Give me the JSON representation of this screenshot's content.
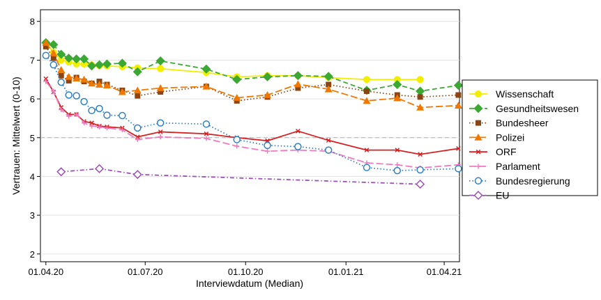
{
  "chart_data": {
    "type": "line",
    "xlabel": "Interviewdatum (Median)",
    "ylabel": "Vertrauen: Mittelwert (0-10)",
    "ylim": [
      1.8,
      8.3
    ],
    "xlim": [
      "2020-03-27",
      "2021-04-15"
    ],
    "yticks": [
      2,
      3,
      4,
      5,
      6,
      7,
      8
    ],
    "xticks": [
      {
        "date": "2020-04-01",
        "label": "01.04.20"
      },
      {
        "date": "2020-07-01",
        "label": "01.07.20"
      },
      {
        "date": "2020-10-01",
        "label": "01.10.20"
      },
      {
        "date": "2021-01-01",
        "label": "01.01.21"
      },
      {
        "date": "2021-04-01",
        "label": "01.04.21"
      }
    ],
    "reference_line": 5,
    "grid": true,
    "legend_position": "right",
    "series": [
      {
        "name": "Wissenschaft",
        "color": "#f2ee00",
        "marker": "circle-filled",
        "dash": "solid",
        "points": [
          [
            "2020-04-01",
            7.45
          ],
          [
            "2020-04-08",
            7.2
          ],
          [
            "2020-04-15",
            7.0
          ],
          [
            "2020-04-22",
            6.95
          ],
          [
            "2020-04-29",
            6.9
          ],
          [
            "2020-05-06",
            6.9
          ],
          [
            "2020-05-13",
            6.88
          ],
          [
            "2020-05-20",
            6.86
          ],
          [
            "2020-05-27",
            6.85
          ],
          [
            "2020-06-10",
            6.83
          ],
          [
            "2020-06-24",
            6.8
          ],
          [
            "2020-07-15",
            6.78
          ],
          [
            "2020-08-26",
            6.68
          ],
          [
            "2020-09-23",
            6.57
          ],
          [
            "2020-10-21",
            6.6
          ],
          [
            "2020-11-18",
            6.6
          ],
          [
            "2020-12-16",
            6.55
          ],
          [
            "2021-01-20",
            6.5
          ],
          [
            "2021-02-17",
            6.5
          ],
          [
            "2021-03-10",
            6.5
          ]
        ]
      },
      {
        "name": "Gesundheitswesen",
        "color": "#3aa832",
        "marker": "diamond-filled",
        "dash": "dash",
        "points": [
          [
            "2020-04-01",
            7.45
          ],
          [
            "2020-04-08",
            7.4
          ],
          [
            "2020-04-15",
            7.15
          ],
          [
            "2020-04-22",
            7.05
          ],
          [
            "2020-04-29",
            7.03
          ],
          [
            "2020-05-06",
            7.03
          ],
          [
            "2020-05-13",
            6.85
          ],
          [
            "2020-05-20",
            6.88
          ],
          [
            "2020-05-27",
            6.9
          ],
          [
            "2020-06-10",
            6.92
          ],
          [
            "2020-06-24",
            6.7
          ],
          [
            "2020-07-15",
            6.98
          ],
          [
            "2020-08-26",
            6.77
          ],
          [
            "2020-09-23",
            6.5
          ],
          [
            "2020-10-21",
            6.57
          ],
          [
            "2020-11-18",
            6.6
          ],
          [
            "2020-12-16",
            6.58
          ],
          [
            "2021-01-20",
            6.22
          ],
          [
            "2021-02-17",
            6.37
          ],
          [
            "2021-03-10",
            6.2
          ],
          [
            "2021-04-14",
            6.35
          ]
        ]
      },
      {
        "name": "Bundesheer",
        "color": "#8b4513",
        "marker": "square-filled",
        "dash": "dot",
        "points": [
          [
            "2020-04-01",
            7.35
          ],
          [
            "2020-04-08",
            7.05
          ],
          [
            "2020-04-15",
            6.6
          ],
          [
            "2020-04-22",
            6.47
          ],
          [
            "2020-04-29",
            6.55
          ],
          [
            "2020-05-06",
            6.45
          ],
          [
            "2020-05-13",
            6.4
          ],
          [
            "2020-05-20",
            6.45
          ],
          [
            "2020-05-27",
            6.37
          ],
          [
            "2020-06-10",
            6.22
          ],
          [
            "2020-06-24",
            6.08
          ],
          [
            "2020-07-15",
            6.18
          ],
          [
            "2020-08-26",
            6.32
          ],
          [
            "2020-09-23",
            5.95
          ],
          [
            "2020-10-21",
            6.05
          ],
          [
            "2020-11-18",
            6.28
          ],
          [
            "2020-12-16",
            6.37
          ],
          [
            "2021-01-20",
            6.2
          ],
          [
            "2021-02-17",
            6.1
          ],
          [
            "2021-03-10",
            6.05
          ],
          [
            "2021-04-14",
            6.1
          ]
        ]
      },
      {
        "name": "Polizei",
        "color": "#f07800",
        "marker": "triangle-filled",
        "dash": "longdash",
        "points": [
          [
            "2020-04-01",
            7.45
          ],
          [
            "2020-04-08",
            7.18
          ],
          [
            "2020-04-15",
            6.75
          ],
          [
            "2020-04-22",
            6.57
          ],
          [
            "2020-04-29",
            6.53
          ],
          [
            "2020-05-06",
            6.5
          ],
          [
            "2020-05-13",
            6.4
          ],
          [
            "2020-05-20",
            6.37
          ],
          [
            "2020-05-27",
            6.35
          ],
          [
            "2020-06-10",
            6.18
          ],
          [
            "2020-06-24",
            6.22
          ],
          [
            "2020-07-15",
            6.28
          ],
          [
            "2020-08-26",
            6.32
          ],
          [
            "2020-09-23",
            6.03
          ],
          [
            "2020-10-21",
            6.1
          ],
          [
            "2020-11-18",
            6.38
          ],
          [
            "2020-12-16",
            6.25
          ],
          [
            "2021-01-20",
            5.95
          ],
          [
            "2021-02-17",
            6.02
          ],
          [
            "2021-03-10",
            5.78
          ],
          [
            "2021-04-14",
            5.83
          ]
        ]
      },
      {
        "name": "ORF",
        "color": "#d42020",
        "marker": "x",
        "dash": "solid",
        "points": [
          [
            "2020-04-01",
            6.52
          ],
          [
            "2020-04-08",
            6.18
          ],
          [
            "2020-04-15",
            5.78
          ],
          [
            "2020-04-22",
            5.6
          ],
          [
            "2020-04-29",
            5.6
          ],
          [
            "2020-05-06",
            5.42
          ],
          [
            "2020-05-13",
            5.38
          ],
          [
            "2020-05-20",
            5.3
          ],
          [
            "2020-05-27",
            5.28
          ],
          [
            "2020-06-10",
            5.25
          ],
          [
            "2020-06-24",
            5.02
          ],
          [
            "2020-07-15",
            5.15
          ],
          [
            "2020-08-26",
            5.1
          ],
          [
            "2020-09-23",
            5.0
          ],
          [
            "2020-10-21",
            4.92
          ],
          [
            "2020-11-18",
            5.17
          ],
          [
            "2020-12-16",
            4.93
          ],
          [
            "2021-01-20",
            4.68
          ],
          [
            "2021-02-17",
            4.68
          ],
          [
            "2021-03-10",
            4.57
          ],
          [
            "2021-04-14",
            4.72
          ]
        ]
      },
      {
        "name": "Parlament",
        "color": "#f07ac0",
        "marker": "plus",
        "dash": "longdash",
        "points": [
          [
            "2020-04-01",
            6.45
          ],
          [
            "2020-04-08",
            6.2
          ],
          [
            "2020-04-15",
            5.72
          ],
          [
            "2020-04-22",
            5.55
          ],
          [
            "2020-04-29",
            5.6
          ],
          [
            "2020-05-06",
            5.38
          ],
          [
            "2020-05-13",
            5.3
          ],
          [
            "2020-05-20",
            5.28
          ],
          [
            "2020-05-27",
            5.25
          ],
          [
            "2020-06-10",
            5.2
          ],
          [
            "2020-06-24",
            4.95
          ],
          [
            "2020-07-15",
            5.02
          ],
          [
            "2020-08-26",
            4.98
          ],
          [
            "2020-09-23",
            4.78
          ],
          [
            "2020-10-21",
            4.65
          ],
          [
            "2020-11-18",
            4.68
          ],
          [
            "2020-12-16",
            4.65
          ],
          [
            "2021-01-20",
            4.35
          ],
          [
            "2021-02-17",
            4.3
          ],
          [
            "2021-03-10",
            4.22
          ],
          [
            "2021-04-14",
            4.3
          ]
        ]
      },
      {
        "name": "Bundesregierung",
        "color": "#2d7fc8",
        "marker": "circle-open",
        "dash": "dot",
        "points": [
          [
            "2020-04-01",
            7.12
          ],
          [
            "2020-04-08",
            6.88
          ],
          [
            "2020-04-15",
            6.43
          ],
          [
            "2020-04-22",
            6.1
          ],
          [
            "2020-04-29",
            6.08
          ],
          [
            "2020-05-06",
            5.93
          ],
          [
            "2020-05-13",
            5.7
          ],
          [
            "2020-05-20",
            5.75
          ],
          [
            "2020-05-27",
            5.58
          ],
          [
            "2020-06-10",
            5.57
          ],
          [
            "2020-06-24",
            5.25
          ],
          [
            "2020-07-15",
            5.38
          ],
          [
            "2020-08-26",
            5.35
          ],
          [
            "2020-09-23",
            4.95
          ],
          [
            "2020-10-21",
            4.8
          ],
          [
            "2020-11-18",
            4.77
          ],
          [
            "2020-12-16",
            4.68
          ],
          [
            "2021-01-20",
            4.23
          ],
          [
            "2021-02-17",
            4.15
          ],
          [
            "2021-03-10",
            4.17
          ],
          [
            "2021-04-14",
            4.2
          ]
        ]
      },
      {
        "name": "EU",
        "color": "#9b4fb8",
        "marker": "diamond-open",
        "dash": "dashdot",
        "points": [
          [
            "2020-04-15",
            4.12
          ],
          [
            "2020-05-20",
            4.2
          ],
          [
            "2020-06-24",
            4.05
          ],
          [
            "2021-03-10",
            3.8
          ]
        ]
      }
    ]
  }
}
